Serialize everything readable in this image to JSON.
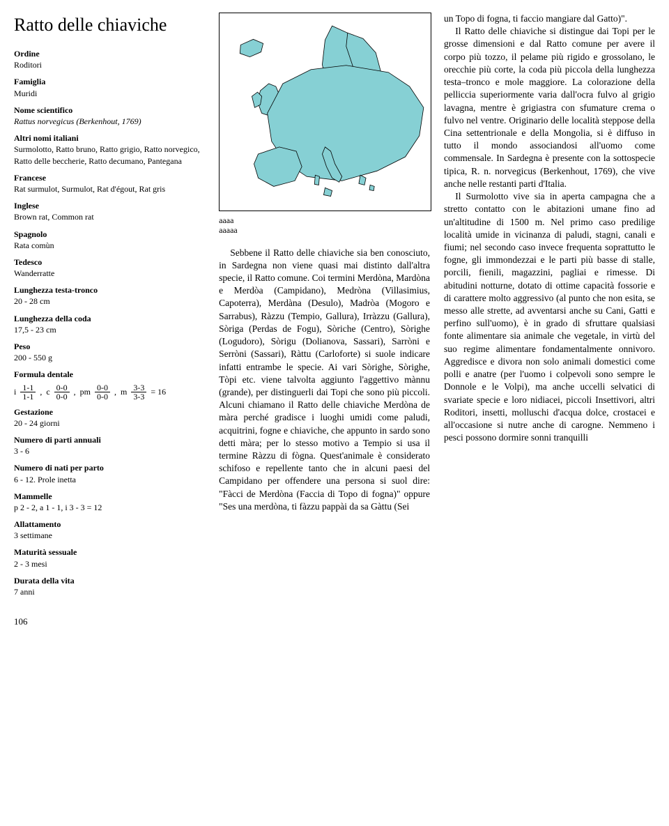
{
  "title": "Ratto delle chiaviche",
  "taxonomy": [
    {
      "label": "Ordine",
      "value": "Roditori"
    },
    {
      "label": "Famiglia",
      "value": "Muridi"
    },
    {
      "label": "Nome scientifico",
      "value": "Rattus norvegicus (Berkenhout, 1769)",
      "italic": true
    },
    {
      "label": "Altri nomi italiani",
      "value": "Surmolotto, Ratto bruno, Ratto grigio, Ratto norvegico, Ratto delle beccherie, Ratto decumano, Pantegana"
    },
    {
      "label": "Francese",
      "value": "Rat surmulot, Surmulot, Rat d'égout, Rat gris"
    },
    {
      "label": "Inglese",
      "value": "Brown rat, Common rat"
    },
    {
      "label": "Spagnolo",
      "value": "Rata comùn"
    },
    {
      "label": "Tedesco",
      "value": "Wanderratte"
    },
    {
      "label": "Lunghezza testa-tronco",
      "value": "20 - 28 cm"
    },
    {
      "label": "Lunghezza della coda",
      "value": "17,5 - 23 cm"
    },
    {
      "label": "Peso",
      "value": "200 - 550 g"
    },
    {
      "label": "Formula dentale",
      "value": ""
    },
    {
      "label": "Gestazione",
      "value": "20 - 24 giorni"
    },
    {
      "label": "Numero di parti annuali",
      "value": "3 - 6"
    },
    {
      "label": "Numero di nati per parto",
      "value": "6 - 12. Prole inetta"
    },
    {
      "label": "Mammelle",
      "value": "p 2 - 2, a 1 - 1, i 3 - 3 = 12"
    },
    {
      "label": "Allattamento",
      "value": "3 settimane"
    },
    {
      "label": "Maturità sessuale",
      "value": "2 - 3 mesi"
    },
    {
      "label": "Durata della vita",
      "value": "7 anni"
    }
  ],
  "dental_formula": {
    "prefix_i": "i",
    "i_num": "1-1",
    "i_den": "1-1",
    "comma": " , ",
    "prefix_c": "c",
    "c_num": "0-0",
    "c_den": "0-0",
    "prefix_pm": "pm",
    "pm_num": "0-0",
    "pm_den": "0-0",
    "prefix_m": "m",
    "m_num": "3-3",
    "m_den": "3-3",
    "equals": " = 16"
  },
  "map": {
    "land_color": "#86d0d4",
    "border_color": "#000000",
    "bg_color": "#ffffff"
  },
  "aaaa_lines": {
    "l1": "aaaa",
    "l2": "aaaaa"
  },
  "body_mid_p1": "Sebbene il Ratto delle chiaviche sia ben conosciuto, in Sardegna non viene quasi mai distinto dall'altra specie, il Ratto comune. Coi termini Merdòna, Mardòna e Merdòa (Campidano), Medròna (Villasimius, Capoterra), Merdàna (Desulo), Madròa (Mogoro e Sarrabus), Ràzzu (Tempio, Gallura), Irràzzu (Gallura), Sòriga (Perdas de Fogu), Sòriche (Centro), Sòrighe (Logudoro), Sòrigu (Dolianova, Sassari), Sarròni e Serròni (Sassari), Ràttu (Carloforte) si suole indicare infatti entrambe le specie. Ai vari Sòrighe, Sòrighe, Tòpi etc. viene talvolta aggiunto l'aggettivo mànnu (grande), per distinguerli dai Topi che sono più piccoli. Alcuni chiamano il Ratto delle chiaviche Merdòna de màra perché gradisce i luoghi umidi come paludi, acquitrini, fogne e chiaviche, che appunto in sardo sono detti màra; per lo stesso motivo a Tempio si usa il termine Ràzzu di fògna. Quest'animale è considerato schifoso e repellente tanto che in alcuni paesi del Campidano per offendere una persona si suol dire: \"Fàcci de Merdòna (Faccia di Topo di fogna)\" oppure \"Ses una merdòna, ti fàzzu pappài da sa Gàttu (Sei",
  "body_right_cont": "un Topo di fogna, ti faccio mangiare dal Gatto)\".",
  "body_right_p2": "Il Ratto delle chiaviche si distingue dai Topi per le grosse dimensioni e dal Ratto comune per avere il corpo più tozzo, il pelame più rigido e grossolano, le orecchie più corte, la coda più piccola della lunghezza testa–tronco e mole maggiore. La colorazione della pelliccia superiormente varia dall'ocra fulvo al grigio lavagna, mentre è grigiastra con sfumature crema o fulvo nel ventre. Originario delle località steppose della Cina settentrionale e della Mongolia, si è diffuso in tutto il mondo associandosi all'uomo come commensale. In Sardegna è presente con la sottospecie tipica, R. n. norvegicus (Berkenhout, 1769), che vive anche nelle restanti parti d'Italia.",
  "body_right_p3": "Il Surmolotto vive sia in aperta campagna che a stretto contatto con le abitazioni umane fino ad un'altitudine di 1500 m. Nel primo caso predilige località umide in vicinanza di paludi, stagni, canali e fiumi; nel secondo caso invece frequenta soprattutto le fogne, gli immondezzai e le parti più basse di stalle, porcili, fienili, magazzini, pagliai e rimesse. Di abitudini notturne, dotato di ottime capacità fossorie e di carattere molto aggressivo (al punto che non esita, se messo alle strette, ad avventarsi anche su Cani, Gatti e perfino sull'uomo), è in grado di sfruttare qualsiasi fonte alimentare sia animale che vegetale, in virtù del suo regime alimentare fondamentalmente onnivoro. Aggredisce e divora non solo animali domestici come polli e anatre (per l'uomo i colpevoli sono sempre le Donnole e le Volpi), ma anche uccelli selvatici di svariate specie e loro nidiacei, piccoli Insettivori, altri Roditori, insetti, molluschi d'acqua dolce, crostacei e all'occasione si nutre anche di carogne. Nemmeno i pesci possono dormire sonni tranquilli",
  "page_number": "106"
}
